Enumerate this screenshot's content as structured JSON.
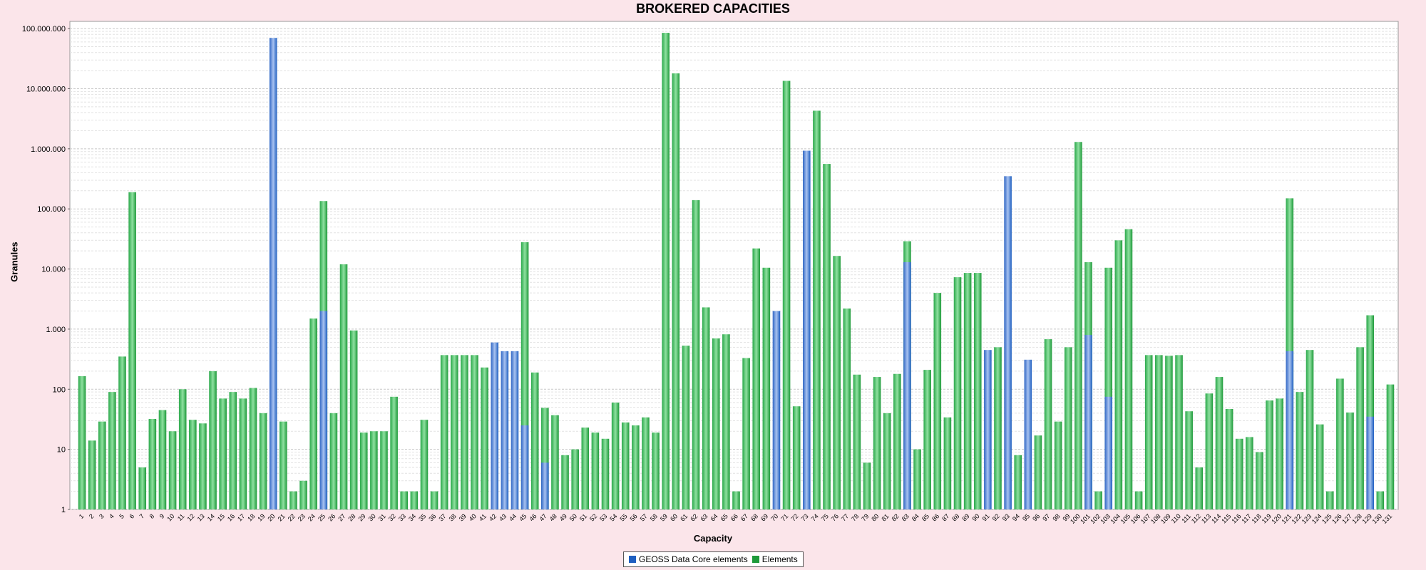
{
  "chart_data": {
    "type": "bar",
    "title": "BROKERED CAPACITIES",
    "xlabel": "Capacity",
    "ylabel": "Granules",
    "y_scale": "log",
    "ylim": [
      1,
      100000000
    ],
    "y_ticks": [
      "1",
      "10",
      "100",
      "1.000",
      "10.000",
      "100.000",
      "1.000.000",
      "10.000.000",
      "100.000.000"
    ],
    "grid": true,
    "legend_position": "bottom-center",
    "categories": [
      "1",
      "2",
      "3",
      "4",
      "5",
      "6",
      "7",
      "8",
      "9",
      "10",
      "11",
      "12",
      "13",
      "14",
      "15",
      "16",
      "17",
      "18",
      "19",
      "20",
      "21",
      "22",
      "23",
      "24",
      "25",
      "26",
      "27",
      "28",
      "29",
      "30",
      "31",
      "32",
      "33",
      "34",
      "35",
      "36",
      "37",
      "38",
      "39",
      "40",
      "41",
      "42",
      "43",
      "44",
      "45",
      "46",
      "47",
      "48",
      "49",
      "50",
      "51",
      "52",
      "53",
      "54",
      "55",
      "56",
      "57",
      "58",
      "59",
      "60",
      "61",
      "62",
      "63",
      "64",
      "65",
      "66",
      "67",
      "68",
      "69",
      "70",
      "71",
      "72",
      "73",
      "74",
      "75",
      "76",
      "77",
      "78",
      "79",
      "80",
      "81",
      "82",
      "83",
      "84",
      "85",
      "86",
      "87",
      "88",
      "89",
      "90",
      "91",
      "92",
      "93",
      "94",
      "95",
      "96",
      "97",
      "98",
      "99",
      "100",
      "101",
      "102",
      "103",
      "104",
      "105",
      "106",
      "107",
      "108",
      "109",
      "110",
      "111",
      "112",
      "113",
      "114",
      "115",
      "116",
      "117",
      "118",
      "119",
      "120",
      "121",
      "122",
      "123",
      "124",
      "125",
      "126",
      "127",
      "128",
      "129",
      "130",
      "131"
    ],
    "series": [
      {
        "name": "GEOSS Data Core elements",
        "color": "#1f5fc0",
        "values": [
          0,
          0,
          0,
          0,
          0,
          0,
          0,
          0,
          0,
          0,
          0,
          0,
          0,
          0,
          0,
          0,
          0,
          0,
          0,
          70000000,
          0,
          0,
          0,
          0,
          2000,
          0,
          0,
          0,
          0,
          0,
          0,
          0,
          0,
          0,
          0,
          0,
          0,
          0,
          0,
          0,
          0,
          600,
          430,
          430,
          25,
          0,
          6,
          0,
          0,
          0,
          0,
          0,
          0,
          0,
          0,
          0,
          0,
          0,
          0,
          0,
          0,
          0,
          0,
          0,
          0,
          0,
          0,
          0,
          0,
          2000,
          0,
          0,
          930000,
          0,
          0,
          0,
          0,
          0,
          0,
          0,
          0,
          0,
          13000,
          0,
          0,
          0,
          0,
          0,
          0,
          0,
          450,
          0,
          350000,
          0,
          310,
          0,
          0,
          0,
          0,
          0,
          800,
          0,
          75,
          0,
          0,
          0,
          0,
          0,
          0,
          0,
          0,
          0,
          0,
          0,
          0,
          0,
          0,
          0,
          0,
          0,
          430,
          0,
          0,
          0,
          0,
          0,
          0,
          0,
          35,
          0,
          0
        ]
      },
      {
        "name": "Elements",
        "color": "#1e9a3a",
        "values": [
          165,
          14,
          29,
          90,
          350,
          190000,
          5,
          32,
          45,
          20,
          100,
          31,
          27,
          200,
          70,
          90,
          70,
          105,
          40,
          0,
          29,
          2,
          3,
          1500,
          135000,
          40,
          12000,
          950,
          19,
          20,
          20,
          75,
          2,
          2,
          31,
          2,
          370,
          370,
          370,
          370,
          230,
          0,
          0,
          0,
          28000,
          190,
          49,
          37,
          8,
          10,
          23,
          19,
          15,
          60,
          28,
          25,
          34,
          19,
          85000000,
          18000000,
          530,
          140000,
          2300,
          700,
          820,
          2,
          330,
          22000,
          10500,
          0,
          13500000,
          52,
          0,
          4300000,
          560000,
          16500,
          2200,
          175,
          6,
          160,
          40,
          180,
          29000,
          10,
          210,
          4000,
          34,
          7300,
          8600,
          8600,
          0,
          500,
          0,
          8,
          0,
          17,
          680,
          29,
          500,
          1300000,
          13000,
          2,
          10500,
          30000,
          46000,
          2,
          370,
          370,
          360,
          370,
          43,
          5,
          85,
          160,
          47,
          15,
          16,
          9,
          65,
          70,
          150000,
          90,
          450,
          26,
          2,
          150,
          41,
          500,
          1700,
          2,
          120
        ]
      }
    ]
  }
}
